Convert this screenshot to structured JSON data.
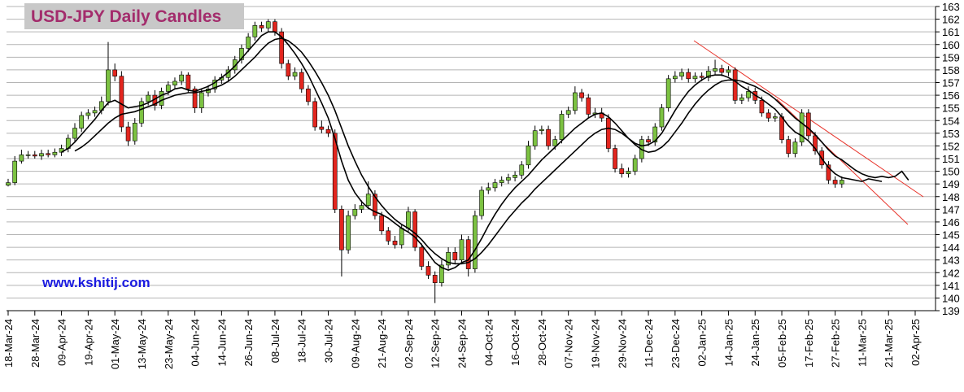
{
  "chart_data": {
    "type": "candlestick",
    "title": "USD-JPY Daily Candles",
    "annotation": "www.kshitij.com",
    "up_color": "#7cc242",
    "down_color": "#e3261f",
    "ylim": [
      139,
      163
    ],
    "yticks": [
      139,
      140,
      141,
      142,
      143,
      144,
      145,
      146,
      147,
      148,
      149,
      150,
      151,
      152,
      153,
      154,
      155,
      156,
      157,
      158,
      159,
      160,
      161,
      162,
      163
    ],
    "grid": true,
    "categories": [
      "18-Mar-24",
      null,
      null,
      null,
      "28-Mar-24",
      null,
      null,
      null,
      "09-Apr-24",
      null,
      null,
      null,
      "19-Apr-24",
      null,
      null,
      null,
      "01-May-24",
      null,
      null,
      null,
      "13-May-24",
      null,
      null,
      null,
      "23-May-24",
      null,
      null,
      null,
      "04-Jun-24",
      null,
      null,
      null,
      "14-Jun-24",
      null,
      null,
      null,
      "26-Jun-24",
      null,
      null,
      null,
      "08-Jul-24",
      null,
      null,
      null,
      "18-Jul-24",
      null,
      null,
      null,
      "30-Jul-24",
      null,
      null,
      null,
      "09-Aug-24",
      null,
      null,
      null,
      "21-Aug-24",
      null,
      null,
      null,
      "02-Sep-24",
      null,
      null,
      null,
      "12-Sep-24",
      null,
      null,
      null,
      "24-Sep-24",
      null,
      null,
      null,
      "04-Oct-24",
      null,
      null,
      null,
      "16-Oct-24",
      null,
      null,
      null,
      "28-Oct-24",
      null,
      null,
      null,
      "07-Nov-24",
      null,
      null,
      null,
      "19-Nov-24",
      null,
      null,
      null,
      "29-Nov-24",
      null,
      null,
      null,
      "11-Dec-24",
      null,
      null,
      null,
      "23-Dec-24",
      null,
      null,
      null,
      "02-Jan-25",
      null,
      null,
      null,
      "14-Jan-25",
      null,
      null,
      null,
      "24-Jan-25",
      null,
      null,
      null,
      "05-Feb-25",
      null,
      null,
      null,
      "17-Feb-25",
      null,
      null,
      null,
      "27-Feb-25",
      null,
      null,
      null,
      "11-Mar-25",
      null,
      null,
      null,
      "21-Mar-25",
      null,
      null,
      null,
      "02-Apr-25"
    ],
    "candles": {
      "open": [
        148.9,
        149.1,
        150.8,
        151.3,
        151.3,
        151.2,
        151.4,
        151.3,
        151.5,
        151.8,
        152.6,
        153.4,
        154.4,
        154.6,
        154.8,
        155.5,
        158.0,
        157.5,
        153.5,
        152.4,
        153.8,
        155.5,
        156.0,
        155.2,
        156.3,
        156.8,
        157.1,
        157.6,
        156.5,
        155.0,
        156.2,
        156.5,
        157.2,
        157.4,
        158.0,
        158.8,
        159.7,
        160.6,
        161.5,
        161.3,
        161.8,
        161.0,
        158.5,
        157.5,
        157.8,
        156.5,
        155.5,
        153.5,
        153.3,
        153.0,
        147.0,
        143.8,
        146.5,
        147.0,
        147.3,
        148.2,
        146.5,
        145.3,
        144.5,
        144.2,
        145.5,
        146.8,
        144.0,
        142.5,
        141.8,
        141.2,
        142.6,
        143.6,
        143.0,
        144.6,
        142.3,
        146.5,
        148.5,
        148.7,
        149.1,
        149.3,
        149.5,
        149.7,
        150.5,
        152.0,
        153.2,
        153.3,
        152.0,
        152.5,
        154.5,
        154.8,
        156.2,
        155.8,
        154.5,
        154.6,
        154.2,
        151.8,
        150.2,
        149.8,
        150.0,
        151.0,
        152.5,
        152.3,
        153.5,
        155.0,
        157.3,
        157.5,
        157.8,
        157.3,
        157.5,
        157.4,
        157.9,
        158.1,
        157.8,
        158.0,
        155.6,
        155.8,
        156.3,
        155.6,
        154.6,
        154.2,
        154.3,
        152.5,
        151.4,
        152.3,
        154.6,
        152.8,
        151.6,
        150.5,
        149.3,
        149.0,
        null,
        null,
        null,
        null,
        null,
        null,
        null,
        null,
        null,
        null,
        null
      ],
      "high": [
        149.4,
        151.2,
        151.7,
        151.6,
        151.6,
        151.7,
        151.7,
        151.8,
        152.1,
        152.9,
        153.8,
        154.7,
        154.9,
        155.1,
        155.9,
        160.2,
        158.5,
        157.9,
        153.9,
        154.2,
        155.8,
        156.3,
        156.4,
        156.6,
        157.1,
        157.4,
        157.9,
        157.8,
        156.7,
        156.5,
        156.8,
        157.5,
        157.7,
        158.3,
        159.1,
        160.0,
        160.9,
        161.8,
        161.8,
        162.0,
        162.0,
        161.3,
        158.8,
        158.2,
        158.1,
        156.8,
        155.8,
        154.0,
        153.6,
        153.3,
        147.3,
        146.9,
        147.4,
        147.7,
        149.2,
        148.5,
        146.8,
        145.6,
        144.9,
        145.8,
        147.2,
        147.0,
        144.3,
        142.9,
        142.1,
        143.0,
        144.0,
        144.0,
        145.0,
        144.9,
        146.9,
        148.8,
        149.1,
        149.4,
        149.6,
        149.8,
        150.0,
        150.8,
        152.4,
        153.6,
        153.6,
        153.6,
        152.8,
        154.8,
        155.1,
        156.7,
        156.5,
        156.1,
        155.0,
        155.0,
        154.5,
        152.1,
        150.6,
        150.3,
        151.3,
        152.8,
        152.8,
        153.8,
        155.3,
        157.6,
        157.9,
        158.1,
        158.1,
        157.8,
        157.8,
        158.3,
        158.8,
        158.4,
        158.3,
        158.2,
        156.1,
        156.7,
        156.6,
        155.9,
        154.9,
        154.6,
        154.6,
        152.8,
        152.6,
        154.9,
        154.9,
        153.1,
        151.9,
        150.8,
        149.6,
        149.6,
        null,
        null,
        null,
        null,
        null,
        null,
        null,
        null,
        null,
        null,
        null
      ],
      "low": [
        148.8,
        148.9,
        150.6,
        151.0,
        151.0,
        150.9,
        151.1,
        151.1,
        151.2,
        151.5,
        152.3,
        153.1,
        154.1,
        154.3,
        154.5,
        155.2,
        157.1,
        153.1,
        152.0,
        152.1,
        153.5,
        155.2,
        154.8,
        154.9,
        156.0,
        156.5,
        156.8,
        156.2,
        154.6,
        154.6,
        155.9,
        156.2,
        156.9,
        157.1,
        157.7,
        158.5,
        159.4,
        160.3,
        161.0,
        161.0,
        160.7,
        158.1,
        157.2,
        157.2,
        156.2,
        155.2,
        153.2,
        153.0,
        152.7,
        146.7,
        141.7,
        143.5,
        146.2,
        146.7,
        147.0,
        146.2,
        145.0,
        144.2,
        143.9,
        143.9,
        145.2,
        143.7,
        142.2,
        141.5,
        139.6,
        140.9,
        142.3,
        142.7,
        142.7,
        141.7,
        142.0,
        146.2,
        148.2,
        148.4,
        148.8,
        149.0,
        149.2,
        149.4,
        150.2,
        151.7,
        152.9,
        151.7,
        151.7,
        152.2,
        154.2,
        154.5,
        155.5,
        154.2,
        154.2,
        153.9,
        151.5,
        149.9,
        149.5,
        149.5,
        149.7,
        150.7,
        152.0,
        152.0,
        153.2,
        154.7,
        157.0,
        157.2,
        157.0,
        157.0,
        157.1,
        157.1,
        157.6,
        157.5,
        157.5,
        155.3,
        155.3,
        155.5,
        155.3,
        154.3,
        153.9,
        153.9,
        152.2,
        151.1,
        151.1,
        152.0,
        152.5,
        151.3,
        150.2,
        149.0,
        148.7,
        148.7,
        null,
        null,
        null,
        null,
        null,
        null,
        null,
        null,
        null,
        null,
        null
      ],
      "close": [
        149.1,
        150.8,
        151.3,
        151.3,
        151.2,
        151.4,
        151.3,
        151.5,
        151.8,
        152.6,
        153.4,
        154.4,
        154.6,
        154.8,
        155.5,
        158.0,
        157.5,
        153.5,
        152.4,
        153.8,
        155.5,
        156.0,
        155.2,
        156.3,
        156.8,
        157.1,
        157.6,
        156.5,
        155.0,
        156.2,
        156.5,
        157.2,
        157.4,
        158.0,
        158.8,
        159.7,
        160.6,
        161.5,
        161.3,
        161.8,
        161.0,
        158.5,
        157.5,
        157.8,
        156.5,
        155.5,
        153.5,
        153.3,
        153.0,
        147.0,
        143.8,
        146.5,
        147.0,
        147.3,
        148.2,
        146.5,
        145.3,
        144.5,
        144.2,
        145.5,
        146.8,
        144.0,
        142.5,
        141.8,
        141.2,
        142.6,
        143.6,
        143.0,
        144.6,
        142.3,
        146.5,
        148.5,
        148.7,
        149.1,
        149.3,
        149.5,
        149.7,
        150.5,
        152.0,
        153.2,
        153.3,
        152.0,
        152.5,
        154.5,
        154.8,
        156.2,
        155.8,
        154.5,
        154.6,
        154.2,
        151.8,
        150.2,
        149.8,
        150.0,
        151.0,
        152.5,
        152.3,
        153.5,
        155.0,
        157.3,
        157.5,
        157.8,
        157.3,
        157.5,
        157.4,
        157.9,
        158.1,
        157.8,
        158.0,
        155.6,
        155.8,
        156.3,
        155.6,
        154.6,
        154.2,
        154.3,
        152.5,
        151.4,
        152.3,
        154.6,
        152.8,
        151.6,
        150.5,
        149.3,
        149.0,
        149.3,
        null,
        null,
        null,
        null,
        null,
        null,
        null,
        null,
        null,
        null,
        null
      ]
    },
    "series": [
      {
        "color": "#000000",
        "values": [
          null,
          null,
          null,
          null,
          null,
          null,
          null,
          null,
          151.5,
          151.8,
          152.3,
          152.9,
          153.5,
          154.1,
          154.8,
          155.4,
          155.6,
          155.3,
          155.0,
          155.1,
          155.2,
          155.4,
          155.7,
          156.0,
          156.2,
          156.5,
          156.6,
          156.4,
          156.3,
          156.5,
          156.7,
          157.0,
          157.4,
          157.8,
          158.3,
          158.9,
          159.5,
          160.1,
          160.7,
          161.0,
          161.0,
          160.6,
          160.0,
          159.3,
          158.5,
          157.6,
          156.5,
          155.4,
          154.2,
          152.6,
          150.8,
          149.3,
          148.3,
          147.6,
          147.1,
          146.8,
          146.6,
          146.3,
          145.9,
          145.5,
          145.2,
          144.8,
          144.2,
          143.5,
          142.8,
          142.4,
          142.2,
          142.4,
          142.8,
          143.0,
          143.8,
          144.7,
          145.7,
          146.6,
          147.4,
          148.1,
          148.7,
          149.2,
          149.7,
          150.3,
          150.9,
          151.4,
          151.9,
          152.4,
          152.9,
          153.4,
          153.8,
          154.2,
          154.5,
          154.6,
          154.3,
          153.8,
          153.2,
          152.6,
          152.2,
          152.0,
          152.1,
          152.4,
          153.0,
          153.9,
          154.8,
          155.6,
          156.3,
          156.8,
          157.2,
          157.5,
          157.6,
          157.6,
          157.4,
          157.1,
          156.7,
          156.4,
          156.0,
          155.7,
          155.3,
          154.9,
          154.3,
          153.6,
          153.1,
          152.8,
          152.4,
          151.8,
          151.0,
          150.3,
          149.8,
          149.5,
          149.4,
          149.3,
          149.2,
          149.4,
          149.3,
          149.2,
          null,
          null,
          null,
          null,
          null
        ]
      },
      {
        "color": "#000000",
        "values": [
          null,
          null,
          null,
          null,
          null,
          null,
          null,
          null,
          null,
          null,
          151.6,
          151.9,
          152.3,
          152.8,
          153.3,
          153.8,
          154.2,
          154.5,
          154.6,
          154.7,
          154.9,
          155.1,
          155.3,
          155.6,
          155.8,
          156.0,
          156.1,
          156.2,
          156.2,
          156.3,
          156.4,
          156.6,
          156.8,
          157.1,
          157.5,
          158.0,
          158.5,
          159.0,
          159.6,
          160.1,
          160.4,
          160.5,
          160.3,
          159.9,
          159.4,
          158.7,
          157.9,
          157.0,
          156.0,
          154.8,
          153.4,
          152.0,
          150.8,
          149.7,
          148.8,
          148.0,
          147.3,
          146.7,
          146.2,
          145.8,
          145.5,
          145.1,
          144.6,
          144.0,
          143.5,
          143.1,
          142.8,
          142.7,
          142.7,
          142.8,
          143.1,
          143.6,
          144.2,
          144.9,
          145.6,
          146.3,
          146.9,
          147.5,
          148.0,
          148.6,
          149.1,
          149.6,
          150.1,
          150.6,
          151.1,
          151.6,
          152.1,
          152.6,
          153.0,
          153.3,
          153.4,
          153.3,
          153.0,
          152.6,
          152.1,
          151.7,
          151.5,
          151.6,
          151.9,
          152.4,
          153.1,
          153.8,
          154.6,
          155.3,
          155.9,
          156.4,
          156.8,
          157.1,
          157.2,
          157.2,
          157.1,
          156.9,
          156.7,
          156.4,
          156.1,
          155.7,
          155.2,
          154.7,
          154.2,
          153.8,
          153.4,
          152.9,
          152.3,
          151.7,
          151.2,
          150.9,
          150.5,
          150.1,
          149.8,
          149.6,
          149.5,
          149.6,
          149.5,
          149.6,
          150.0,
          149.3,
          null
        ]
      }
    ]
  }
}
